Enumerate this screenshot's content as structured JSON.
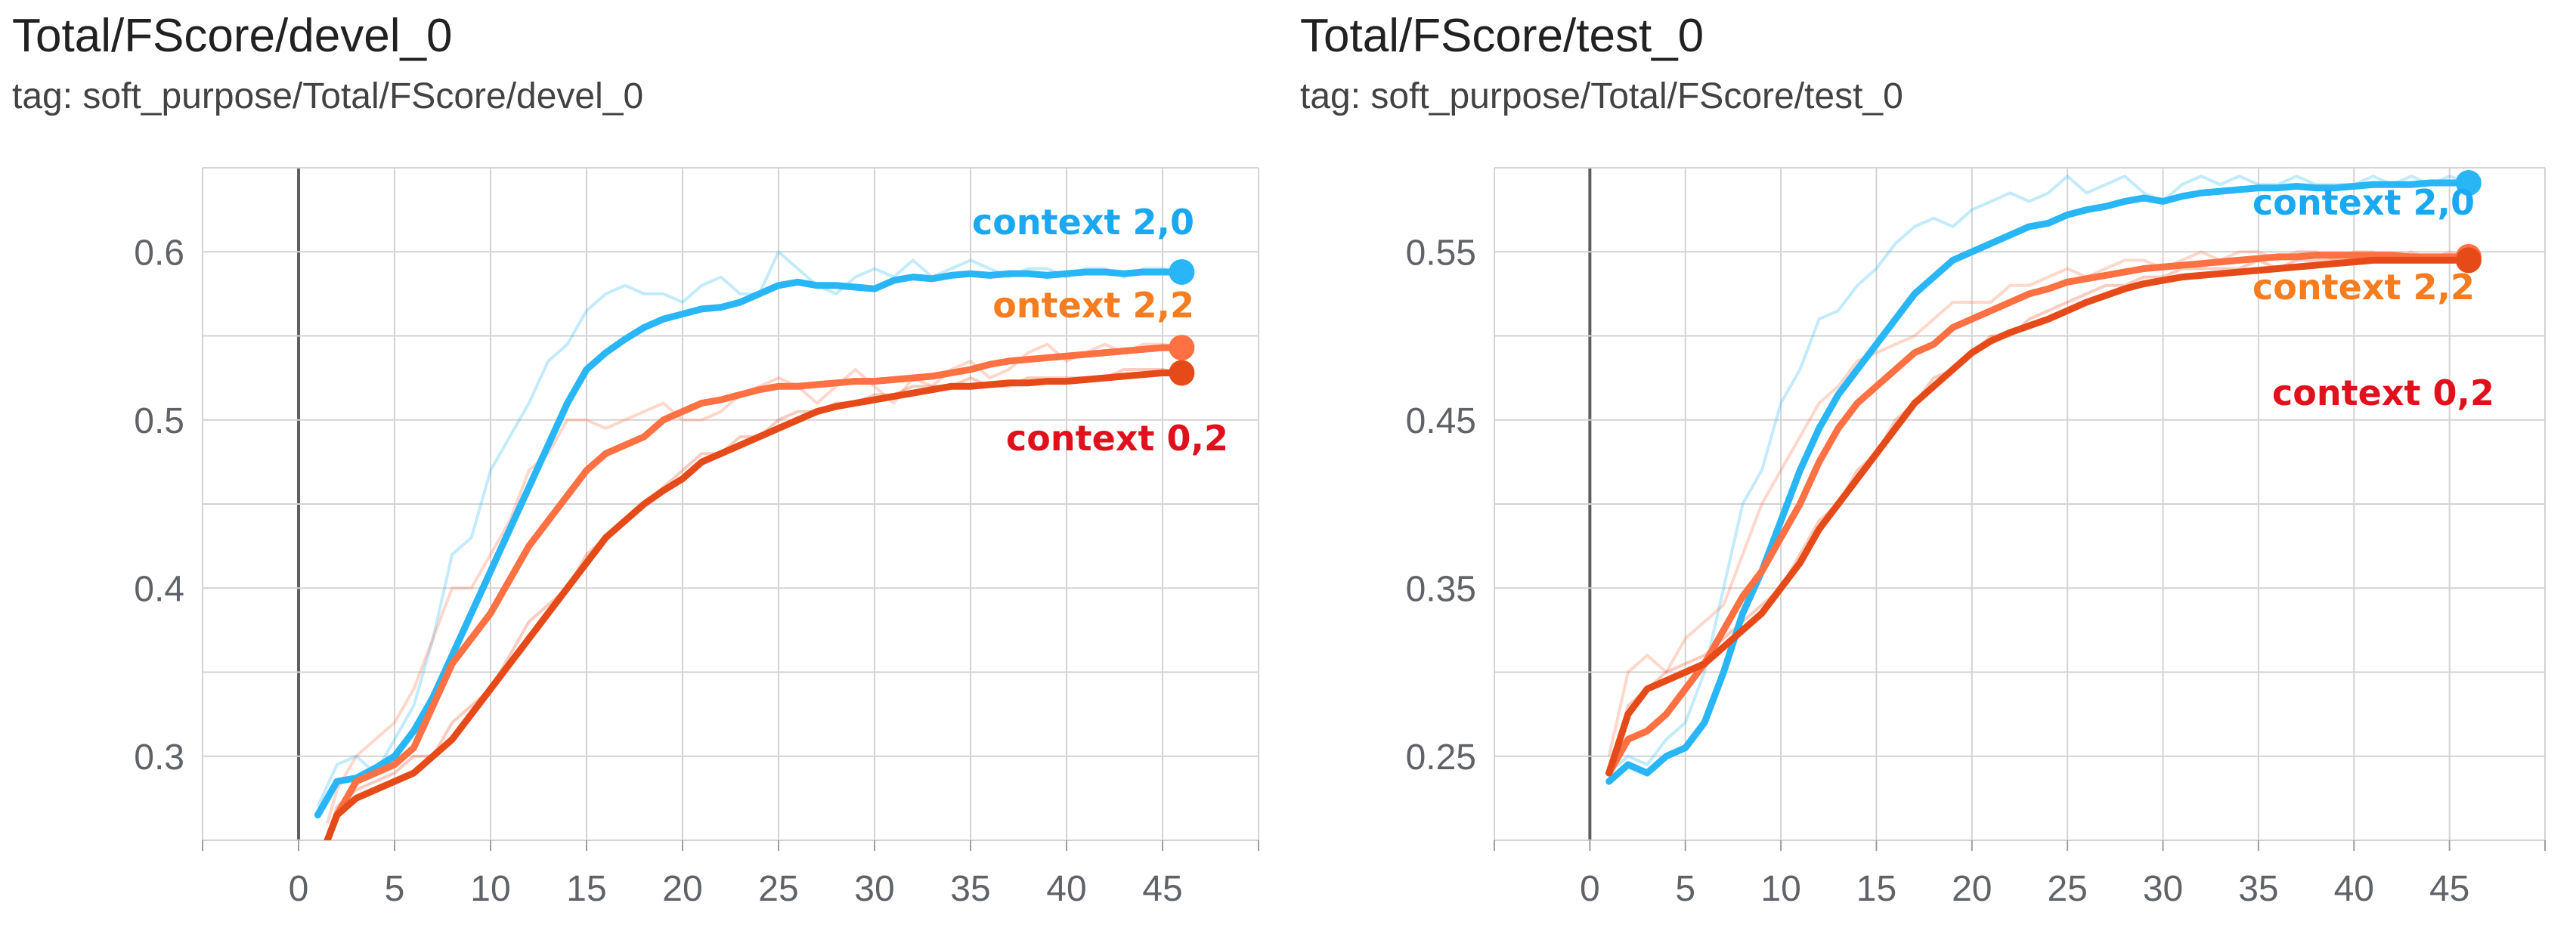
{
  "chart_data": [
    {
      "type": "line",
      "title": "Total/FScore/devel_0",
      "subtitle": "tag: soft_purpose/Total/FScore/devel_0",
      "xlabel": "",
      "ylabel": "",
      "xlim": [
        -5,
        50
      ],
      "ylim": [
        0.25,
        0.65
      ],
      "x_ticks": [
        0,
        5,
        10,
        15,
        20,
        25,
        30,
        35,
        40,
        45
      ],
      "y_ticks": [
        0.3,
        0.4,
        0.5,
        0.6
      ],
      "x_tick_labels": [
        "0",
        "5",
        "10",
        "15",
        "20",
        "25",
        "30",
        "35",
        "40",
        "45"
      ],
      "y_tick_labels": [
        "0.3",
        "0.4",
        "0.5",
        "0.6"
      ],
      "grid": true,
      "legend": "inline labels at line ends",
      "series": [
        {
          "name": "context 2,0",
          "color": "#29b6f6",
          "label_color": "#1aa8f0",
          "x": [
            1,
            2,
            3,
            4,
            5,
            6,
            7,
            8,
            9,
            10,
            11,
            12,
            13,
            14,
            15,
            16,
            17,
            18,
            19,
            20,
            21,
            22,
            23,
            24,
            25,
            26,
            27,
            28,
            29,
            30,
            31,
            32,
            33,
            34,
            35,
            36,
            37,
            38,
            39,
            40,
            41,
            42,
            43,
            44,
            45,
            46
          ],
          "y": [
            0.265,
            0.285,
            0.287,
            0.293,
            0.3,
            0.315,
            0.335,
            0.36,
            0.385,
            0.41,
            0.435,
            0.46,
            0.485,
            0.51,
            0.53,
            0.54,
            0.548,
            0.555,
            0.56,
            0.563,
            0.566,
            0.567,
            0.57,
            0.575,
            0.58,
            0.582,
            0.58,
            0.58,
            0.579,
            0.578,
            0.583,
            0.585,
            0.584,
            0.586,
            0.587,
            0.586,
            0.587,
            0.587,
            0.586,
            0.587,
            0.588,
            0.588,
            0.587,
            0.588,
            0.588,
            0.588
          ],
          "raw_y": [
            0.27,
            0.295,
            0.3,
            0.29,
            0.31,
            0.33,
            0.37,
            0.42,
            0.43,
            0.47,
            0.49,
            0.51,
            0.535,
            0.545,
            0.565,
            0.575,
            0.58,
            0.575,
            0.575,
            0.57,
            0.58,
            0.585,
            0.575,
            0.575,
            0.6,
            0.59,
            0.58,
            0.575,
            0.585,
            0.59,
            0.585,
            0.595,
            0.585,
            0.59,
            0.595,
            0.59,
            0.585,
            0.59,
            0.59,
            0.585,
            0.59,
            0.59,
            0.585,
            0.59,
            0.59,
            0.588
          ]
        },
        {
          "name": "ontext 2,2",
          "color": "#ff7043",
          "label_color": "#f57c1f",
          "x": [
            1.5,
            2,
            3,
            4,
            5,
            6,
            7,
            8,
            9,
            10,
            11,
            12,
            13,
            14,
            15,
            16,
            17,
            18,
            19,
            20,
            21,
            22,
            23,
            24,
            25,
            26,
            27,
            28,
            29,
            30,
            31,
            32,
            33,
            34,
            35,
            36,
            37,
            38,
            39,
            40,
            41,
            42,
            43,
            44,
            45,
            46
          ],
          "y": [
            0.25,
            0.265,
            0.285,
            0.29,
            0.295,
            0.305,
            0.33,
            0.355,
            0.37,
            0.385,
            0.405,
            0.425,
            0.44,
            0.455,
            0.47,
            0.48,
            0.485,
            0.49,
            0.5,
            0.505,
            0.51,
            0.512,
            0.515,
            0.518,
            0.52,
            0.52,
            0.521,
            0.522,
            0.523,
            0.523,
            0.524,
            0.525,
            0.526,
            0.528,
            0.53,
            0.533,
            0.535,
            0.536,
            0.537,
            0.538,
            0.539,
            0.54,
            0.541,
            0.542,
            0.543,
            0.543
          ],
          "raw_y": [
            0.26,
            0.28,
            0.3,
            0.31,
            0.32,
            0.34,
            0.37,
            0.4,
            0.4,
            0.42,
            0.44,
            0.47,
            0.48,
            0.5,
            0.5,
            0.495,
            0.5,
            0.505,
            0.51,
            0.5,
            0.5,
            0.505,
            0.515,
            0.52,
            0.525,
            0.52,
            0.51,
            0.52,
            0.53,
            0.52,
            0.51,
            0.525,
            0.52,
            0.53,
            0.535,
            0.525,
            0.53,
            0.54,
            0.545,
            0.535,
            0.54,
            0.545,
            0.54,
            0.545,
            0.545,
            0.543
          ]
        },
        {
          "name": "context 0,2",
          "color": "#e64a19",
          "label_color": "#e0101c",
          "x": [
            1.5,
            2,
            3,
            4,
            5,
            6,
            7,
            8,
            9,
            10,
            11,
            12,
            13,
            14,
            15,
            16,
            17,
            18,
            19,
            20,
            21,
            22,
            23,
            24,
            25,
            26,
            27,
            28,
            29,
            30,
            31,
            32,
            33,
            34,
            35,
            36,
            37,
            38,
            39,
            40,
            41,
            42,
            43,
            44,
            45,
            46
          ],
          "y": [
            0.25,
            0.265,
            0.275,
            0.28,
            0.285,
            0.29,
            0.3,
            0.31,
            0.325,
            0.34,
            0.355,
            0.37,
            0.385,
            0.4,
            0.415,
            0.43,
            0.44,
            0.45,
            0.458,
            0.465,
            0.475,
            0.48,
            0.485,
            0.49,
            0.495,
            0.5,
            0.505,
            0.508,
            0.51,
            0.512,
            0.514,
            0.516,
            0.518,
            0.52,
            0.52,
            0.521,
            0.522,
            0.522,
            0.523,
            0.523,
            0.524,
            0.525,
            0.526,
            0.527,
            0.528,
            0.528
          ],
          "raw_y": [
            0.25,
            0.27,
            0.28,
            0.285,
            0.29,
            0.3,
            0.3,
            0.32,
            0.33,
            0.34,
            0.36,
            0.38,
            0.39,
            0.4,
            0.42,
            0.43,
            0.44,
            0.45,
            0.46,
            0.47,
            0.48,
            0.48,
            0.49,
            0.49,
            0.5,
            0.505,
            0.505,
            0.51,
            0.51,
            0.515,
            0.515,
            0.52,
            0.52,
            0.52,
            0.525,
            0.52,
            0.52,
            0.525,
            0.525,
            0.525,
            0.525,
            0.525,
            0.53,
            0.53,
            0.53,
            0.528
          ]
        }
      ]
    },
    {
      "type": "line",
      "title": "Total/FScore/test_0",
      "subtitle": "tag: soft_purpose/Total/FScore/test_0",
      "xlabel": "",
      "ylabel": "",
      "xlim": [
        -5,
        50
      ],
      "ylim": [
        0.2,
        0.6
      ],
      "x_ticks": [
        0,
        5,
        10,
        15,
        20,
        25,
        30,
        35,
        40,
        45
      ],
      "y_ticks": [
        0.25,
        0.35,
        0.45,
        0.55
      ],
      "x_tick_labels": [
        "0",
        "5",
        "10",
        "15",
        "20",
        "25",
        "30",
        "35",
        "40",
        "45"
      ],
      "y_tick_labels": [
        "0.25",
        "0.35",
        "0.45",
        "0.55"
      ],
      "grid": true,
      "legend": "inline labels at line ends",
      "series": [
        {
          "name": "context 2,0",
          "color": "#29b6f6",
          "label_color": "#1aa8f0",
          "x": [
            1,
            2,
            3,
            4,
            5,
            6,
            7,
            8,
            9,
            10,
            11,
            12,
            13,
            14,
            15,
            16,
            17,
            18,
            19,
            20,
            21,
            22,
            23,
            24,
            25,
            26,
            27,
            28,
            29,
            30,
            31,
            32,
            33,
            34,
            35,
            36,
            37,
            38,
            39,
            40,
            41,
            42,
            43,
            44,
            45,
            46
          ],
          "y": [
            0.235,
            0.245,
            0.24,
            0.25,
            0.255,
            0.27,
            0.3,
            0.335,
            0.36,
            0.39,
            0.42,
            0.445,
            0.465,
            0.48,
            0.495,
            0.51,
            0.525,
            0.535,
            0.545,
            0.55,
            0.555,
            0.56,
            0.565,
            0.567,
            0.572,
            0.575,
            0.577,
            0.58,
            0.582,
            0.58,
            0.583,
            0.585,
            0.586,
            0.587,
            0.588,
            0.588,
            0.589,
            0.588,
            0.588,
            0.589,
            0.59,
            0.59,
            0.59,
            0.591,
            0.591,
            0.591
          ],
          "raw_y": [
            0.24,
            0.25,
            0.245,
            0.26,
            0.27,
            0.3,
            0.35,
            0.4,
            0.42,
            0.46,
            0.48,
            0.51,
            0.515,
            0.53,
            0.54,
            0.555,
            0.565,
            0.57,
            0.565,
            0.575,
            0.58,
            0.585,
            0.58,
            0.585,
            0.595,
            0.585,
            0.59,
            0.595,
            0.585,
            0.58,
            0.59,
            0.595,
            0.59,
            0.595,
            0.59,
            0.59,
            0.595,
            0.59,
            0.59,
            0.59,
            0.595,
            0.59,
            0.595,
            0.59,
            0.595,
            0.591
          ]
        },
        {
          "name": "context 2,2",
          "color": "#ff7043",
          "label_color": "#f57c1f",
          "x": [
            1,
            2,
            3,
            4,
            5,
            6,
            7,
            8,
            9,
            10,
            11,
            12,
            13,
            14,
            15,
            16,
            17,
            18,
            19,
            20,
            21,
            22,
            23,
            24,
            25,
            26,
            27,
            28,
            29,
            30,
            31,
            32,
            33,
            34,
            35,
            36,
            37,
            38,
            39,
            40,
            41,
            42,
            43,
            44,
            45,
            46
          ],
          "y": [
            0.24,
            0.26,
            0.265,
            0.275,
            0.29,
            0.305,
            0.325,
            0.345,
            0.36,
            0.38,
            0.4,
            0.425,
            0.445,
            0.46,
            0.47,
            0.48,
            0.49,
            0.495,
            0.505,
            0.51,
            0.515,
            0.52,
            0.525,
            0.528,
            0.532,
            0.534,
            0.536,
            0.538,
            0.54,
            0.541,
            0.542,
            0.543,
            0.544,
            0.545,
            0.546,
            0.547,
            0.547,
            0.548,
            0.548,
            0.548,
            0.548,
            0.548,
            0.547,
            0.547,
            0.547,
            0.547
          ],
          "raw_y": [
            0.25,
            0.3,
            0.31,
            0.3,
            0.32,
            0.33,
            0.34,
            0.37,
            0.4,
            0.42,
            0.44,
            0.46,
            0.47,
            0.485,
            0.49,
            0.495,
            0.5,
            0.51,
            0.52,
            0.52,
            0.52,
            0.53,
            0.53,
            0.535,
            0.54,
            0.535,
            0.54,
            0.545,
            0.545,
            0.54,
            0.545,
            0.55,
            0.545,
            0.55,
            0.55,
            0.545,
            0.55,
            0.55,
            0.545,
            0.55,
            0.55,
            0.545,
            0.55,
            0.545,
            0.55,
            0.547
          ]
        },
        {
          "name": "context 0,2",
          "color": "#e64a19",
          "label_color": "#e0101c",
          "x": [
            1,
            2,
            3,
            4,
            5,
            6,
            7,
            8,
            9,
            10,
            11,
            12,
            13,
            14,
            15,
            16,
            17,
            18,
            19,
            20,
            21,
            22,
            23,
            24,
            25,
            26,
            27,
            28,
            29,
            30,
            31,
            32,
            33,
            34,
            35,
            36,
            37,
            38,
            39,
            40,
            41,
            42,
            43,
            44,
            45,
            46
          ],
          "y": [
            0.24,
            0.275,
            0.29,
            0.295,
            0.3,
            0.305,
            0.315,
            0.325,
            0.335,
            0.35,
            0.365,
            0.385,
            0.4,
            0.415,
            0.43,
            0.445,
            0.46,
            0.47,
            0.48,
            0.49,
            0.497,
            0.502,
            0.506,
            0.51,
            0.515,
            0.52,
            0.524,
            0.528,
            0.531,
            0.533,
            0.535,
            0.536,
            0.537,
            0.538,
            0.539,
            0.54,
            0.541,
            0.542,
            0.543,
            0.544,
            0.545,
            0.545,
            0.545,
            0.545,
            0.545,
            0.545
          ],
          "raw_y": [
            0.24,
            0.28,
            0.29,
            0.3,
            0.305,
            0.31,
            0.32,
            0.33,
            0.34,
            0.35,
            0.37,
            0.39,
            0.4,
            0.42,
            0.43,
            0.45,
            0.46,
            0.475,
            0.48,
            0.49,
            0.5,
            0.5,
            0.51,
            0.515,
            0.52,
            0.525,
            0.53,
            0.53,
            0.535,
            0.535,
            0.54,
            0.54,
            0.54,
            0.54,
            0.545,
            0.54,
            0.545,
            0.545,
            0.545,
            0.545,
            0.545,
            0.545,
            0.545,
            0.545,
            0.545,
            0.545
          ]
        }
      ]
    }
  ]
}
